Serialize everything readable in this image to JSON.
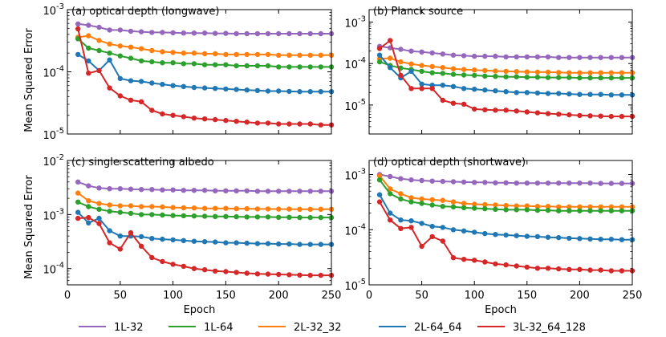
{
  "figure": {
    "ylabel": "Mean Squared Error",
    "xlabel": "Epoch"
  },
  "legend": [
    {
      "name": "1L-32",
      "color": "#9467bd"
    },
    {
      "name": "1L-64",
      "color": "#2ca02c"
    },
    {
      "name": "2L-32_32",
      "color": "#ff7f0e"
    },
    {
      "name": "2L-64_64",
      "color": "#1f77b4"
    },
    {
      "name": "3L-32_64_128",
      "color": "#d62728"
    }
  ],
  "chart_data": [
    {
      "type": "line",
      "title": "(a) optical depth (longwave)",
      "xlabel": "",
      "ylabel": "Mean Squared Error",
      "xlim": [
        0,
        250
      ],
      "ylim": [
        1e-05,
        0.001
      ],
      "yscale": "log",
      "x_ticks": [],
      "y_ticks": [
        {
          "value": 1e-05,
          "label": "10-5",
          "base": "10",
          "exp": "-5"
        },
        {
          "value": 0.0001,
          "label": "10-4",
          "base": "10",
          "exp": "-4"
        },
        {
          "value": 0.001,
          "label": "10-3",
          "base": "10",
          "exp": "-3"
        }
      ],
      "x": [
        10,
        20,
        30,
        40,
        50,
        60,
        70,
        80,
        90,
        100,
        110,
        120,
        130,
        140,
        150,
        160,
        170,
        180,
        190,
        200,
        210,
        220,
        230,
        240,
        250
      ],
      "series": [
        {
          "name": "1L-32",
          "values": [
            0.00059,
            0.00056,
            0.00052,
            0.00047,
            0.00047,
            0.00045,
            0.00044,
            0.00043,
            0.00043,
            0.000425,
            0.00042,
            0.00042,
            0.00042,
            0.000415,
            0.000415,
            0.00041,
            0.00041,
            0.00041,
            0.00041,
            0.00041,
            0.00041,
            0.00041,
            0.00041,
            0.00041,
            0.00041
          ]
        },
        {
          "name": "2L-32_32",
          "values": [
            0.00036,
            0.00038,
            0.00032,
            0.00028,
            0.00026,
            0.00025,
            0.000235,
            0.00022,
            0.00021,
            0.000205,
            0.0002,
            0.0002,
            0.000195,
            0.000195,
            0.00019,
            0.00019,
            0.00019,
            0.00019,
            0.00019,
            0.000185,
            0.000185,
            0.000185,
            0.000185,
            0.000185,
            0.000185
          ]
        },
        {
          "name": "1L-64",
          "values": [
            0.00034,
            0.00024,
            0.00022,
            0.0002,
            0.00018,
            0.000165,
            0.00015,
            0.000145,
            0.00014,
            0.00014,
            0.000135,
            0.000135,
            0.00013,
            0.00013,
            0.00013,
            0.000125,
            0.000125,
            0.000125,
            0.000125,
            0.00012,
            0.00012,
            0.00012,
            0.00012,
            0.00012,
            0.00012
          ]
        },
        {
          "name": "2L-64_64",
          "values": [
            0.00019,
            0.00015,
            0.000105,
            0.000155,
            7.8e-05,
            7.2e-05,
            7e-05,
            6.6e-05,
            6.3e-05,
            6e-05,
            5.8e-05,
            5.6e-05,
            5.5e-05,
            5.4e-05,
            5.3e-05,
            5.2e-05,
            5.1e-05,
            5e-05,
            4.9e-05,
            4.9e-05,
            4.85e-05,
            4.8e-05,
            4.8e-05,
            4.8e-05,
            4.8e-05
          ]
        },
        {
          "name": "3L-32_64_128",
          "values": [
            0.00049,
            9.5e-05,
            0.000105,
            5.5e-05,
            4.1e-05,
            3.5e-05,
            3.3e-05,
            2.4e-05,
            2.1e-05,
            2e-05,
            1.9e-05,
            1.8e-05,
            1.75e-05,
            1.7e-05,
            1.65e-05,
            1.6e-05,
            1.55e-05,
            1.5e-05,
            1.5e-05,
            1.45e-05,
            1.45e-05,
            1.45e-05,
            1.45e-05,
            1.4e-05,
            1.4e-05
          ]
        }
      ]
    },
    {
      "type": "line",
      "title": "(b) Planck source",
      "xlabel": "",
      "ylabel": "",
      "xlim": [
        0,
        250
      ],
      "ylim": [
        2e-06,
        0.002
      ],
      "yscale": "log",
      "x_ticks": [],
      "y_ticks": [
        {
          "value": 1e-05,
          "label": "10-5",
          "base": "10",
          "exp": "-5"
        },
        {
          "value": 0.0001,
          "label": "10-4",
          "base": "10",
          "exp": "-4"
        },
        {
          "value": 0.001,
          "label": "10-3",
          "base": "10",
          "exp": "-3"
        }
      ],
      "x": [
        10,
        20,
        30,
        40,
        50,
        60,
        70,
        80,
        90,
        100,
        110,
        120,
        130,
        140,
        150,
        160,
        170,
        180,
        190,
        200,
        210,
        220,
        230,
        240,
        250
      ],
      "series": [
        {
          "name": "1L-32",
          "values": [
            0.00026,
            0.00024,
            0.00022,
            0.0002,
            0.00019,
            0.00018,
            0.00017,
            0.00016,
            0.000155,
            0.00015,
            0.00015,
            0.00015,
            0.000145,
            0.000145,
            0.000145,
            0.000145,
            0.000145,
            0.00014,
            0.00014,
            0.00014,
            0.00014,
            0.00014,
            0.00014,
            0.00014,
            0.00014
          ]
        },
        {
          "name": "2L-32_32",
          "values": [
            0.00013,
            0.000135,
            0.00011,
            9.8e-05,
            9e-05,
            8.5e-05,
            8e-05,
            7.5e-05,
            7.2e-05,
            7e-05,
            6.8e-05,
            6.6e-05,
            6.5e-05,
            6.4e-05,
            6.3e-05,
            6.2e-05,
            6.2e-05,
            6.1e-05,
            6e-05,
            6e-05,
            6e-05,
            6e-05,
            6e-05,
            6e-05,
            6e-05
          ]
        },
        {
          "name": "1L-64",
          "values": [
            0.00011,
            9e-05,
            7.8e-05,
            7.2e-05,
            6.5e-05,
            6e-05,
            5.8e-05,
            5.5e-05,
            5.3e-05,
            5.2e-05,
            5e-05,
            4.9e-05,
            4.8e-05,
            4.8e-05,
            4.7e-05,
            4.7e-05,
            4.6e-05,
            4.6e-05,
            4.6e-05,
            4.5e-05,
            4.5e-05,
            4.5e-05,
            4.5e-05,
            4.5e-05,
            4.5e-05
          ]
        },
        {
          "name": "2L-64_64",
          "values": [
            0.00016,
            8e-05,
            4.5e-05,
            6.5e-05,
            3.2e-05,
            3e-05,
            3e-05,
            2.8e-05,
            2.5e-05,
            2.4e-05,
            2.3e-05,
            2.2e-05,
            2.1e-05,
            2e-05,
            2e-05,
            1.95e-05,
            1.9e-05,
            1.9e-05,
            1.85e-05,
            1.8e-05,
            1.8e-05,
            1.8e-05,
            1.75e-05,
            1.75e-05,
            1.75e-05
          ]
        },
        {
          "name": "3L-32_64_128",
          "values": [
            0.00023,
            0.00036,
            5.2e-05,
            2.5e-05,
            2.5e-05,
            2.5e-05,
            1.3e-05,
            1.1e-05,
            1.05e-05,
            8e-06,
            7.7e-06,
            7.5e-06,
            7.5e-06,
            7.2e-06,
            6.8e-06,
            6.5e-06,
            6.2e-06,
            6e-06,
            5.8e-06,
            5.6e-06,
            5.5e-06,
            5.4e-06,
            5.3e-06,
            5.3e-06,
            5.3e-06
          ]
        }
      ]
    },
    {
      "type": "line",
      "title": "(c) single scattering albedo",
      "xlabel": "Epoch",
      "ylabel": "Mean Squared Error",
      "xlim": [
        0,
        250
      ],
      "ylim": [
        5e-05,
        0.01
      ],
      "yscale": "log",
      "x_ticks": [
        "0",
        "50",
        "100",
        "150",
        "200",
        "250"
      ],
      "y_ticks": [
        {
          "value": 0.0001,
          "label": "10-4",
          "base": "10",
          "exp": "-4"
        },
        {
          "value": 0.001,
          "label": "10-3",
          "base": "10",
          "exp": "-3"
        },
        {
          "value": 0.01,
          "label": "10-2",
          "base": "10",
          "exp": "-2"
        }
      ],
      "x": [
        10,
        20,
        30,
        40,
        50,
        60,
        70,
        80,
        90,
        100,
        110,
        120,
        130,
        140,
        150,
        160,
        170,
        180,
        190,
        200,
        210,
        220,
        230,
        240,
        250
      ],
      "series": [
        {
          "name": "1L-32",
          "values": [
            0.004,
            0.0034,
            0.0031,
            0.003,
            0.003,
            0.00295,
            0.0029,
            0.0029,
            0.00285,
            0.00285,
            0.0028,
            0.0028,
            0.0028,
            0.00275,
            0.00275,
            0.00275,
            0.00275,
            0.0027,
            0.0027,
            0.0027,
            0.0027,
            0.0027,
            0.0027,
            0.0027,
            0.0027
          ]
        },
        {
          "name": "2L-32_32",
          "values": [
            0.0025,
            0.0018,
            0.0016,
            0.0015,
            0.00145,
            0.00145,
            0.0014,
            0.0014,
            0.00138,
            0.00135,
            0.00133,
            0.00132,
            0.0013,
            0.0013,
            0.0013,
            0.00128,
            0.00128,
            0.00127,
            0.00127,
            0.00126,
            0.00126,
            0.00125,
            0.00125,
            0.00125,
            0.00125
          ]
        },
        {
          "name": "1L-64",
          "values": [
            0.0017,
            0.0014,
            0.00125,
            0.00115,
            0.0011,
            0.00105,
            0.001,
            0.001,
            0.00098,
            0.00096,
            0.00095,
            0.00094,
            0.00093,
            0.00092,
            0.00092,
            0.00091,
            0.0009,
            0.0009,
            0.0009,
            0.00089,
            0.00089,
            0.00088,
            0.00088,
            0.00088,
            0.00088
          ]
        },
        {
          "name": "2L-64_64",
          "values": [
            0.0011,
            0.0007,
            0.00085,
            0.0005,
            0.0004,
            0.0004,
            0.00039,
            0.00036,
            0.00035,
            0.00034,
            0.00033,
            0.00032,
            0.000315,
            0.00031,
            0.0003,
            0.0003,
            0.000295,
            0.00029,
            0.00029,
            0.000285,
            0.000285,
            0.00028,
            0.00028,
            0.00028,
            0.00028
          ]
        },
        {
          "name": "3L-32_64_128",
          "values": [
            0.00085,
            0.00088,
            0.00068,
            0.0003,
            0.00023,
            0.00046,
            0.00026,
            0.00016,
            0.000135,
            0.00012,
            0.00011,
            0.0001,
            9.5e-05,
            9e-05,
            8.8e-05,
            8.5e-05,
            8.2e-05,
            8e-05,
            7.9e-05,
            7.8e-05,
            7.7e-05,
            7.6e-05,
            7.5e-05,
            7.5e-05,
            7.5e-05
          ]
        }
      ]
    },
    {
      "type": "line",
      "title": "(d) optical depth (shortwave)",
      "xlabel": "Epoch",
      "ylabel": "",
      "xlim": [
        0,
        250
      ],
      "ylim": [
        1e-05,
        0.0018
      ],
      "yscale": "log",
      "x_ticks": [
        "0",
        "50",
        "100",
        "150",
        "200",
        "250"
      ],
      "y_ticks": [
        {
          "value": 1e-05,
          "label": "10-5",
          "base": "10",
          "exp": "-5"
        },
        {
          "value": 0.0001,
          "label": "10-4",
          "base": "10",
          "exp": "-4"
        },
        {
          "value": 0.001,
          "label": "10-3",
          "base": "10",
          "exp": "-3"
        }
      ],
      "x": [
        10,
        20,
        30,
        40,
        50,
        60,
        70,
        80,
        90,
        100,
        110,
        120,
        130,
        140,
        150,
        160,
        170,
        180,
        190,
        200,
        210,
        220,
        230,
        240,
        250
      ],
      "series": [
        {
          "name": "1L-32",
          "values": [
            0.001,
            0.00092,
            0.00084,
            0.0008,
            0.00078,
            0.00076,
            0.00075,
            0.00074,
            0.00073,
            0.00072,
            0.00072,
            0.00071,
            0.00071,
            0.0007,
            0.0007,
            0.0007,
            0.0007,
            0.0007,
            0.0007,
            0.0007,
            0.0007,
            0.00069,
            0.00069,
            0.00069,
            0.00069
          ]
        },
        {
          "name": "2L-32_32",
          "values": [
            0.00095,
            0.00055,
            0.00045,
            0.00038,
            0.00036,
            0.00035,
            0.00034,
            0.00032,
            0.0003,
            0.00029,
            0.000285,
            0.00028,
            0.000275,
            0.00027,
            0.00027,
            0.000265,
            0.000265,
            0.00026,
            0.00026,
            0.00026,
            0.00026,
            0.00026,
            0.00026,
            0.00026,
            0.00026
          ]
        },
        {
          "name": "1L-64",
          "values": [
            0.0008,
            0.00045,
            0.00036,
            0.00032,
            0.0003,
            0.00028,
            0.000265,
            0.00026,
            0.00025,
            0.000245,
            0.00024,
            0.000235,
            0.00023,
            0.00023,
            0.00023,
            0.000225,
            0.000225,
            0.00022,
            0.00022,
            0.00022,
            0.00022,
            0.00022,
            0.00022,
            0.00022,
            0.00022
          ]
        },
        {
          "name": "2L-64_64",
          "values": [
            0.00043,
            0.0002,
            0.00015,
            0.000145,
            0.00013,
            0.000115,
            0.00011,
            0.0001,
            9.5e-05,
            9e-05,
            8.5e-05,
            8.2e-05,
            8e-05,
            7.8e-05,
            7.6e-05,
            7.5e-05,
            7.3e-05,
            7.2e-05,
            7e-05,
            6.9e-05,
            6.8e-05,
            6.7e-05,
            6.7e-05,
            6.6e-05,
            6.6e-05
          ]
        },
        {
          "name": "3L-32_64_128",
          "values": [
            0.00032,
            0.00015,
            0.000105,
            0.00011,
            5e-05,
            7.5e-05,
            6.2e-05,
            3.1e-05,
            2.9e-05,
            2.8e-05,
            2.6e-05,
            2.4e-05,
            2.3e-05,
            2.2e-05,
            2.1e-05,
            2e-05,
            2e-05,
            1.95e-05,
            1.9e-05,
            1.9e-05,
            1.85e-05,
            1.85e-05,
            1.8e-05,
            1.8e-05,
            1.8e-05
          ]
        }
      ]
    }
  ]
}
